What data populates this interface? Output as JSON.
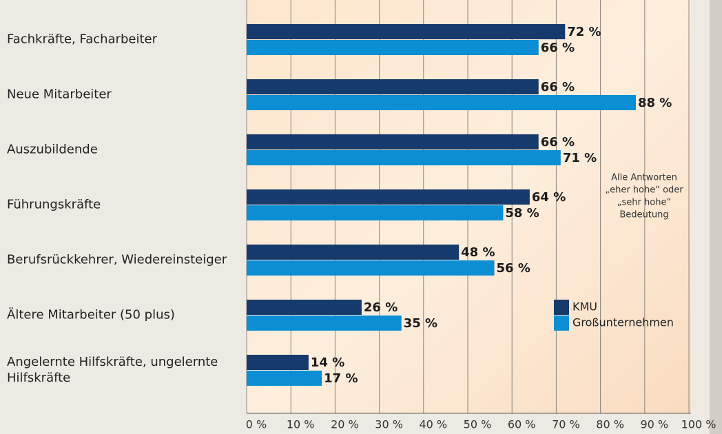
{
  "chart_data": {
    "type": "barh",
    "categories": [
      "Fachkräfte, Facharbeiter",
      "Neue Mitarbeiter",
      "Auszubildende",
      "Führungskräfte",
      "Berufsrückkehrer, Wiedereinsteiger",
      "Ältere Mitarbeiter (50 plus)",
      "Angelernte Hilfskräfte, ungelernte Hilfskräfte"
    ],
    "series": [
      {
        "name": "KMU",
        "color": "#163a6c",
        "values": [
          72,
          66,
          66,
          64,
          48,
          26,
          14
        ],
        "value_labels": [
          "72 %",
          "66 %",
          "66 %",
          "64 %",
          "48 %",
          "26 %",
          "14 %"
        ]
      },
      {
        "name": "Großunternehmen",
        "color": "#0b8ed3",
        "values": [
          66,
          88,
          71,
          58,
          56,
          35,
          17
        ],
        "value_labels": [
          "66 %",
          "88 %",
          "71 %",
          "58 %",
          "56 %",
          "35 %",
          "17 %"
        ]
      }
    ],
    "xlim": [
      0,
      100
    ],
    "xticks": [
      {
        "value": 0,
        "label": "0 %"
      },
      {
        "value": 10,
        "label": "10 %"
      },
      {
        "value": 20,
        "label": "20 %"
      },
      {
        "value": 30,
        "label": "30 %"
      },
      {
        "value": 40,
        "label": "40 %"
      },
      {
        "value": 50,
        "label": "50 %"
      },
      {
        "value": 60,
        "label": "60 %"
      },
      {
        "value": 70,
        "label": "70 %"
      },
      {
        "value": 80,
        "label": "80 %"
      },
      {
        "value": 90,
        "label": "90 %"
      },
      {
        "value": 100,
        "label": "100 %"
      }
    ],
    "grid": true,
    "annotation": [
      "Alle Antworten",
      "„eher hohe“ oder",
      "„sehr hohe“",
      "Bedeutung"
    ]
  }
}
